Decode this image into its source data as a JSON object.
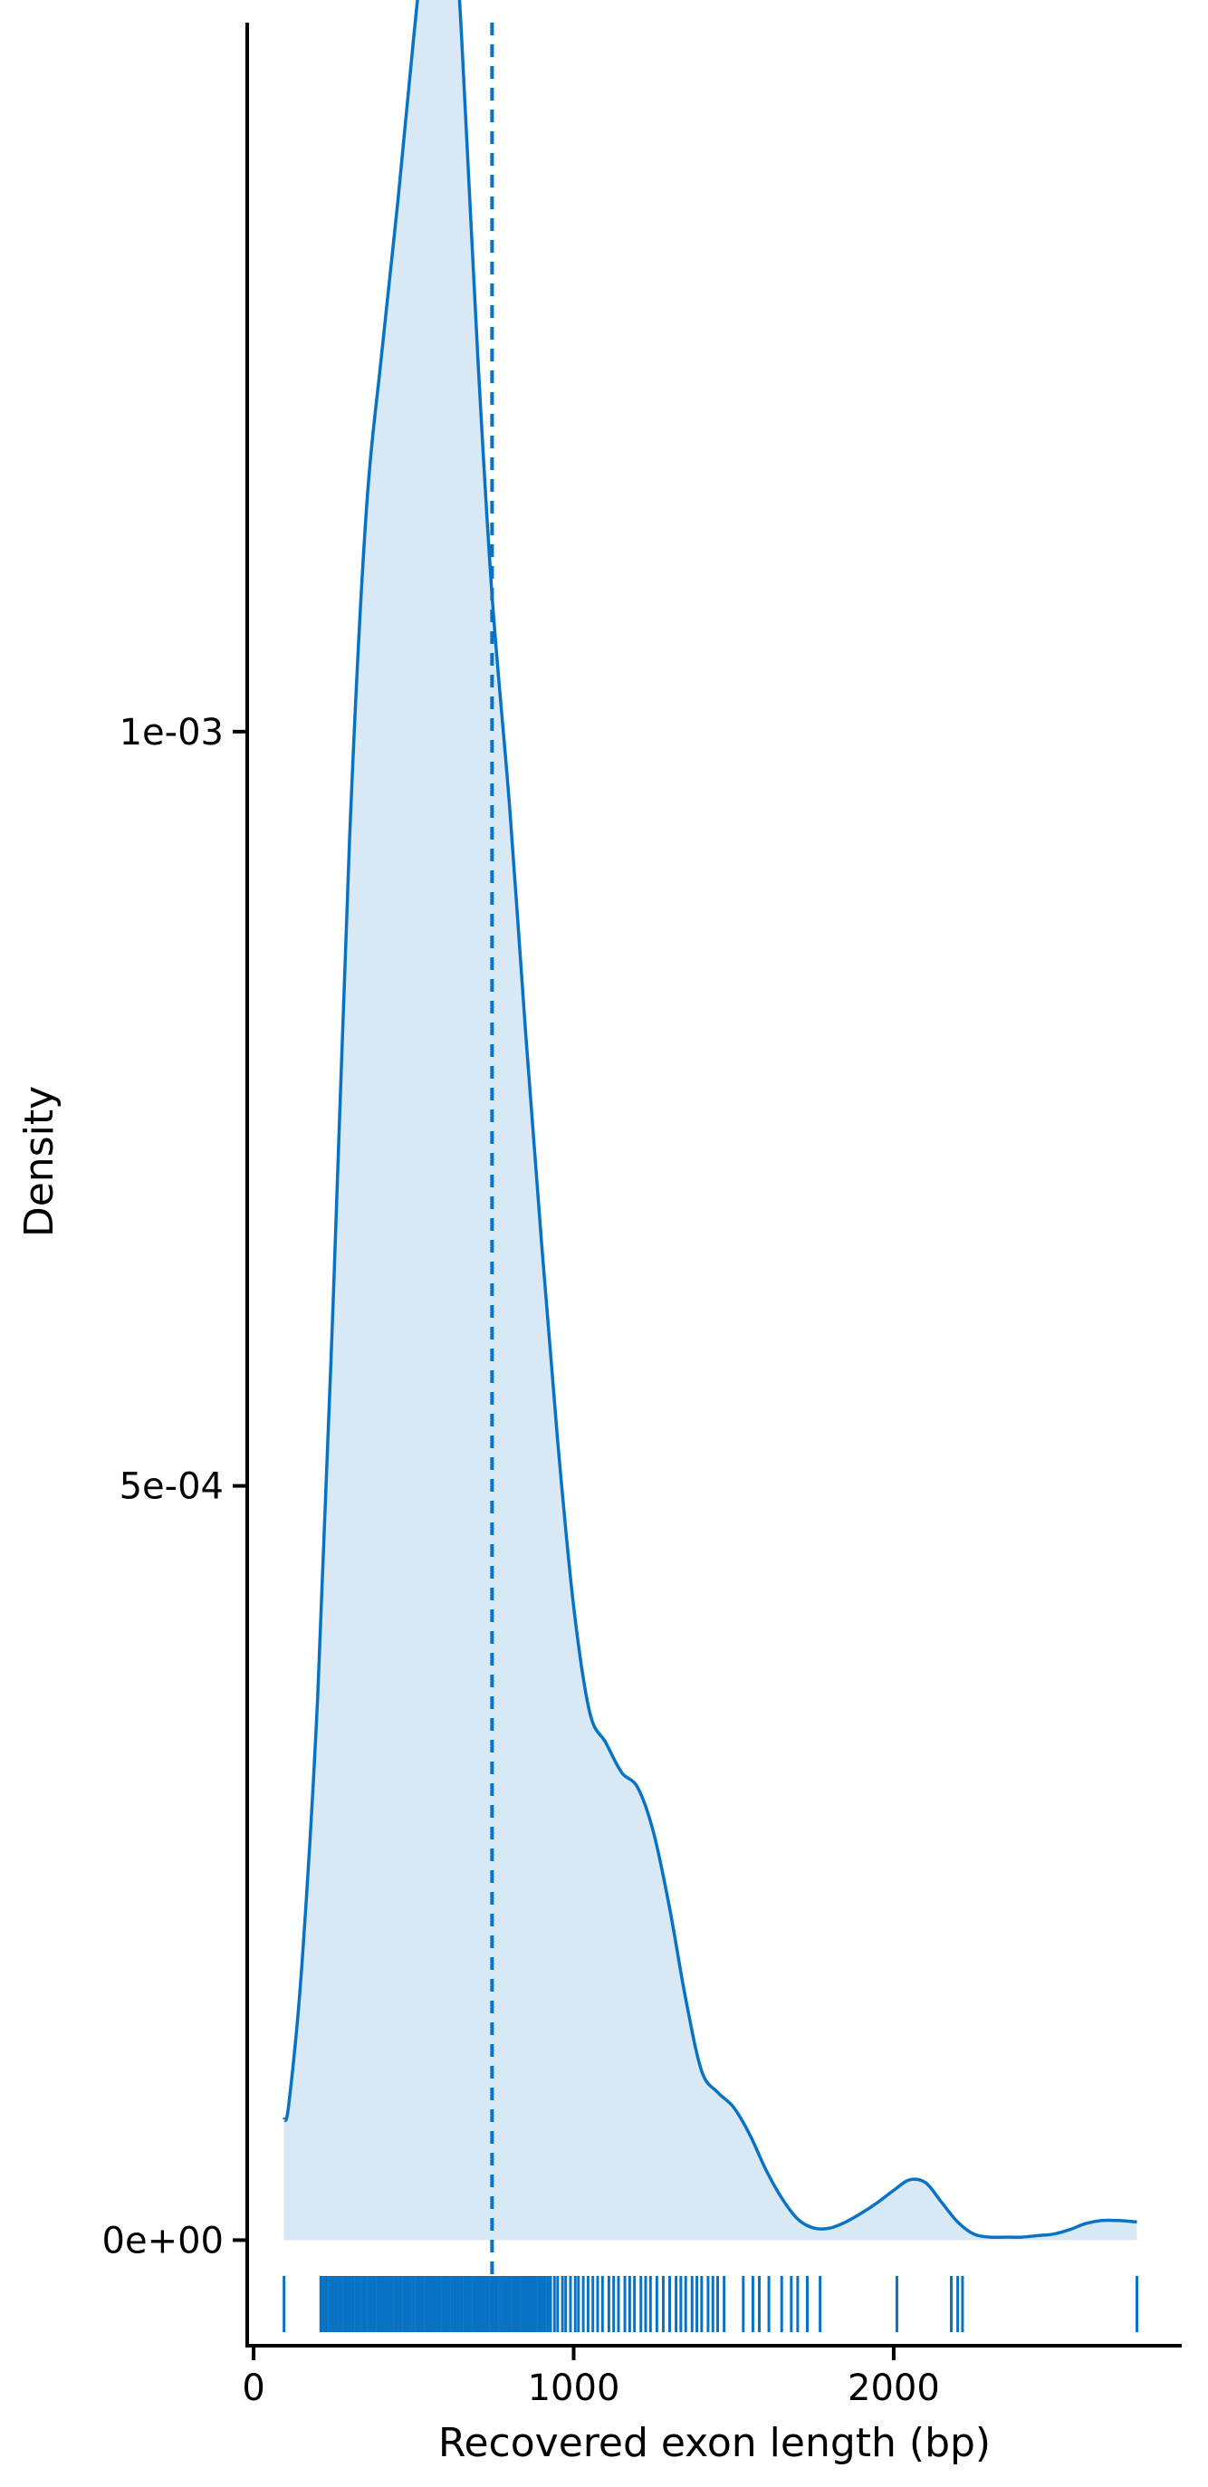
{
  "chart_data": {
    "type": "area",
    "title": "",
    "xlabel": "Recovered exon length (bp)",
    "ylabel": "Density",
    "xlim": [
      -20,
      2900
    ],
    "ylim": [
      -7e-05,
      0.00147
    ],
    "x_ticks": [
      {
        "value": 0,
        "label": "0"
      },
      {
        "value": 1000,
        "label": "1000"
      },
      {
        "value": 2000,
        "label": "2000"
      }
    ],
    "y_ticks": [
      {
        "value": 0,
        "label": "0e+00"
      },
      {
        "value": 0.0005,
        "label": "5e-04"
      },
      {
        "value": 0.001,
        "label": "1e-03"
      }
    ],
    "colors": {
      "line": "#0873c4",
      "fill": "#d9e8f5",
      "axis": "#000000"
    },
    "grid": false,
    "legend": "none",
    "mean_line": {
      "x": 745,
      "style": "dashed"
    },
    "series": [
      {
        "x": [
          95,
          110,
          150,
          200,
          250,
          300,
          350,
          400,
          450,
          500,
          550,
          580,
          600,
          620,
          650,
          700,
          745,
          800,
          850,
          900,
          950,
          1000,
          1050,
          1100,
          1150,
          1200,
          1250,
          1300,
          1350,
          1400,
          1450,
          1500,
          1550,
          1600,
          1650,
          1700,
          1750,
          1800,
          1850,
          1900,
          1950,
          2000,
          2050,
          2100,
          2150,
          2200,
          2250,
          2300,
          2350,
          2400,
          2450,
          2500,
          2550,
          2600,
          2650,
          2700,
          2760
        ],
        "values": [
          8e-05,
          9e-05,
          0.00018,
          0.00036,
          0.00063,
          0.00093,
          0.00114,
          0.00125,
          0.00135,
          0.00146,
          0.00156,
          0.00159,
          0.00159,
          0.00156,
          0.00146,
          0.00125,
          0.00109,
          0.00095,
          0.0008,
          0.00066,
          0.00053,
          0.00042,
          0.00035,
          0.00033,
          0.00031,
          0.0003,
          0.00027,
          0.00022,
          0.00016,
          0.000112,
          9.8e-05,
          8.8e-05,
          7e-05,
          4.7e-05,
          2.8e-05,
          1.4e-05,
          8e-06,
          8e-06,
          1.2e-05,
          1.8e-05,
          2.5e-05,
          3.3e-05,
          4e-05,
          3.8e-05,
          2.5e-05,
          1.2e-05,
          4e-06,
          2e-06,
          2e-06,
          2e-06,
          3e-06,
          4e-06,
          7e-06,
          1.1e-05,
          1.3e-05,
          1.3e-05,
          1.2e-05
        ]
      }
    ],
    "rug": [
      95,
      210,
      215,
      220,
      225,
      230,
      238,
      245,
      252,
      260,
      268,
      275,
      283,
      290,
      298,
      305,
      312,
      320,
      328,
      335,
      343,
      350,
      358,
      365,
      372,
      380,
      388,
      395,
      402,
      410,
      418,
      425,
      432,
      440,
      448,
      455,
      462,
      470,
      478,
      485,
      492,
      500,
      508,
      515,
      522,
      530,
      538,
      545,
      552,
      560,
      568,
      575,
      582,
      590,
      598,
      605,
      612,
      620,
      628,
      635,
      642,
      650,
      658,
      665,
      672,
      680,
      688,
      695,
      702,
      710,
      718,
      725,
      732,
      740,
      748,
      755,
      762,
      770,
      778,
      785,
      792,
      800,
      808,
      815,
      822,
      830,
      838,
      845,
      852,
      860,
      868,
      875,
      882,
      890,
      898,
      905,
      912,
      920,
      928,
      940,
      950,
      965,
      975,
      990,
      1005,
      1015,
      1030,
      1045,
      1060,
      1075,
      1090,
      1110,
      1125,
      1140,
      1160,
      1175,
      1190,
      1210,
      1225,
      1240,
      1260,
      1280,
      1300,
      1320,
      1335,
      1350,
      1370,
      1385,
      1400,
      1420,
      1435,
      1450,
      1470,
      1530,
      1560,
      1580,
      1610,
      1650,
      1680,
      1700,
      1730,
      1770,
      2010,
      2180,
      2200,
      2215,
      2760
    ]
  }
}
